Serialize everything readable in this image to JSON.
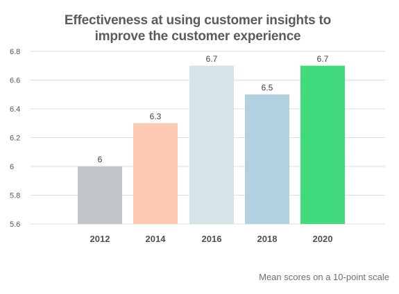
{
  "chart_data": {
    "type": "bar",
    "title": "Effectiveness at using customer insights to improve the customer experience",
    "xlabel": "",
    "ylabel": "",
    "categories": [
      "2012",
      "2014",
      "2016",
      "2018",
      "2020"
    ],
    "values": [
      6,
      6.3,
      6.7,
      6.5,
      6.7
    ],
    "value_labels": [
      "6",
      "6.3",
      "6.7",
      "6.5",
      "6.7"
    ],
    "bar_colors": [
      "#c2c6ca",
      "#fccab1",
      "#d5e4e6",
      "#b1d0e0",
      "#41db7e"
    ],
    "ylim": [
      5.6,
      6.8
    ],
    "yticks": [
      "5.6",
      "5.8",
      "6",
      "6.2",
      "6.4",
      "6.6",
      "6.8"
    ],
    "grid": true,
    "footnote": "Mean scores on a 10-point scale"
  }
}
